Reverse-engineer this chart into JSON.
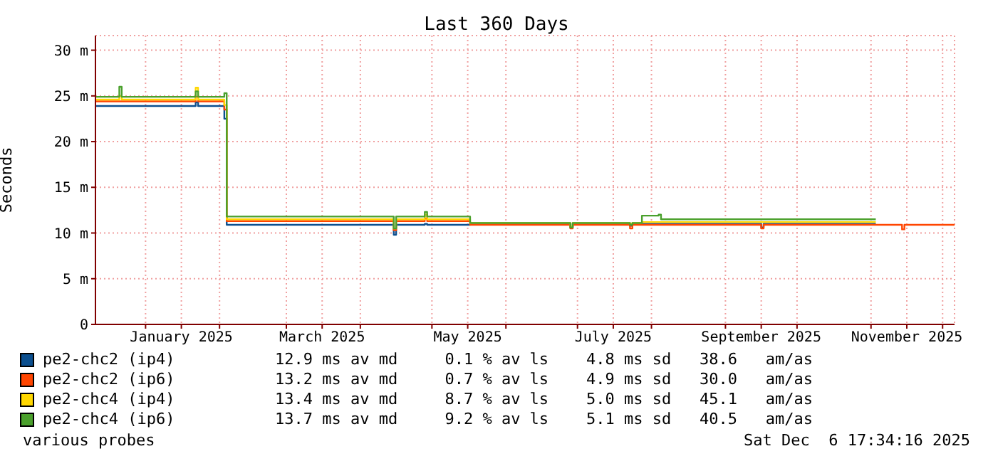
{
  "chart_data": {
    "type": "step",
    "title": "Last 360 Days",
    "ylabel": "Seconds",
    "legend": "bottom",
    "grid": true,
    "x": [
      "2024-12-11",
      "2024-12-20",
      "2024-12-21",
      "2024-12-22",
      "2025-01-21",
      "2025-01-22",
      "2025-01-23",
      "2025-02-02",
      "2025-02-03",
      "2025-02-04",
      "2025-04-14",
      "2025-04-15",
      "2025-04-16",
      "2025-04-27",
      "2025-04-28",
      "2025-04-29",
      "2025-05-17",
      "2025-06-27",
      "2025-06-28",
      "2025-06-29",
      "2025-07-22",
      "2025-07-23",
      "2025-07-24",
      "2025-07-28",
      "2025-08-04",
      "2025-08-05",
      "2025-09-15",
      "2025-09-16",
      "2025-09-17",
      "2025-11-03",
      "2025-11-13",
      "2025-11-14",
      "2025-11-15",
      "2025-12-06"
    ],
    "xlim": [
      "2024-12-11",
      "2025-12-06"
    ],
    "xticks": [
      {
        "value": "2025-01-01",
        "label": null
      },
      {
        "value": "2025-01-16",
        "label": "January 2025"
      },
      {
        "value": "2025-02-01",
        "label": null
      },
      {
        "value": "2025-03-01",
        "label": null
      },
      {
        "value": "2025-03-16",
        "label": "March 2025"
      },
      {
        "value": "2025-04-01",
        "label": null
      },
      {
        "value": "2025-05-01",
        "label": null
      },
      {
        "value": "2025-05-16",
        "label": "May 2025"
      },
      {
        "value": "2025-06-01",
        "label": null
      },
      {
        "value": "2025-07-01",
        "label": null
      },
      {
        "value": "2025-07-16",
        "label": "July 2025"
      },
      {
        "value": "2025-08-01",
        "label": null
      },
      {
        "value": "2025-09-01",
        "label": null
      },
      {
        "value": "2025-09-16",
        "label": "September 2025"
      },
      {
        "value": "2025-10-01",
        "label": null
      },
      {
        "value": "2025-11-01",
        "label": null
      },
      {
        "value": "2025-11-16",
        "label": "November 2025"
      },
      {
        "value": "2025-12-01",
        "label": null
      }
    ],
    "ylim": [
      0,
      31.6
    ],
    "yticks": [
      {
        "value": 0,
        "label": "0"
      },
      {
        "value": 5,
        "label": "5 m"
      },
      {
        "value": 10,
        "label": "10 m"
      },
      {
        "value": 15,
        "label": "15 m"
      },
      {
        "value": 20,
        "label": "20 m"
      },
      {
        "value": 25,
        "label": "25 m"
      },
      {
        "value": 30,
        "label": "30 m"
      }
    ],
    "series": [
      {
        "name": "pe2-chc2 (ip4)",
        "color": "#0b4f8f",
        "values": [
          23.9,
          23.9,
          23.9,
          23.9,
          23.9,
          24.3,
          23.9,
          23.9,
          22.5,
          10.9,
          10.9,
          9.8,
          10.9,
          10.9,
          11.0,
          10.9,
          11.0,
          11.0,
          10.6,
          11.0,
          11.0,
          10.8,
          11.0,
          11.0,
          11.0,
          11.0,
          11.0,
          10.6,
          11.0,
          11.0,
          null,
          null,
          null,
          null
        ]
      },
      {
        "name": "pe2-chc2 (ip6)",
        "color": "#ff4500",
        "values": [
          24.4,
          24.4,
          24.4,
          24.4,
          24.4,
          24.9,
          24.4,
          24.4,
          23.5,
          11.3,
          11.3,
          10.3,
          11.3,
          11.3,
          11.6,
          11.3,
          10.9,
          10.9,
          10.5,
          10.9,
          10.9,
          10.5,
          10.9,
          10.9,
          10.9,
          10.9,
          10.9,
          10.5,
          10.9,
          10.9,
          10.9,
          10.4,
          10.9,
          10.9
        ]
      },
      {
        "name": "pe2-chc4 (ip4)",
        "color": "#ffd700",
        "values": [
          24.6,
          24.6,
          25.0,
          24.6,
          24.6,
          25.9,
          24.6,
          24.6,
          24.0,
          11.5,
          11.5,
          10.5,
          11.5,
          11.5,
          12.0,
          11.5,
          11.1,
          11.1,
          10.7,
          11.1,
          11.1,
          11.0,
          11.1,
          11.2,
          11.2,
          11.2,
          11.2,
          11.2,
          11.2,
          11.2,
          null,
          null,
          null,
          null
        ]
      },
      {
        "name": "pe2-chc4 (ip6)",
        "color": "#4aa02c",
        "values": [
          24.9,
          24.9,
          26.0,
          24.9,
          24.9,
          25.5,
          24.9,
          24.9,
          25.3,
          11.8,
          11.8,
          10.5,
          11.8,
          11.8,
          12.3,
          11.8,
          11.1,
          11.1,
          10.6,
          11.1,
          11.1,
          10.9,
          11.1,
          11.9,
          12.0,
          11.5,
          11.5,
          11.5,
          11.5,
          11.5,
          null,
          null,
          null,
          null
        ]
      }
    ],
    "annotations": [
      "12.9 ms av md     0.1 % av ls    4.8 ms sd   38.6   am/as",
      "13.2 ms av md     0.7 % av ls    4.9 ms sd   30.0   am/as",
      "13.4 ms av md     8.7 % av ls    5.0 ms sd   45.1   am/as",
      "13.7 ms av md     9.2 % av ls    5.1 ms sd   40.5   am/as",
      "various probes",
      "Sat Dec  6 17:34:16 2025"
    ]
  }
}
